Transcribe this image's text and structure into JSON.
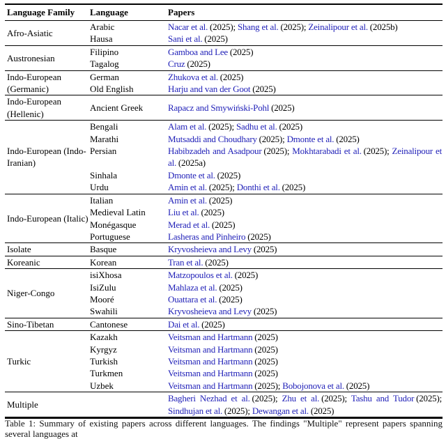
{
  "table": {
    "sep": "; ",
    "headers": {
      "family": "Language Family",
      "language": "Language",
      "papers": "Papers"
    },
    "link_color": "#2121b8",
    "groups": [
      {
        "family": "Afro-Asiatic",
        "rows": [
          {
            "language": "Arabic",
            "papers": [
              {
                "a": "Nacar et al.",
                "y": "(2025)"
              },
              {
                "a": "Shang et al.",
                "y": "(2025)"
              },
              {
                "a": "Zeinalipour et al.",
                "y": "(2025b)"
              }
            ]
          },
          {
            "language": "Hausa",
            "papers": [
              {
                "a": "Sani et al.",
                "y": "(2025)"
              }
            ]
          }
        ]
      },
      {
        "family": "Austronesian",
        "rows": [
          {
            "language": "Filipino",
            "papers": [
              {
                "a": "Gamboa and Lee",
                "y": "(2025)"
              }
            ]
          },
          {
            "language": "Tagalog",
            "papers": [
              {
                "a": "Cruz",
                "y": "(2025)"
              }
            ]
          }
        ]
      },
      {
        "family": "Indo-European (Germanic)",
        "rows": [
          {
            "language": "German",
            "papers": [
              {
                "a": "Zhukova et al.",
                "y": "(2025)"
              }
            ]
          },
          {
            "language": "Old English",
            "papers": [
              {
                "a": "Harju and van der Goot",
                "y": "(2025)"
              }
            ]
          }
        ]
      },
      {
        "family": "Indo-European (Hellenic)",
        "rows": [
          {
            "language": "Ancient Greek",
            "papers": [
              {
                "a": "Rapacz and Smywiński-Pohl",
                "y": "(2025)"
              }
            ]
          }
        ]
      },
      {
        "family": "Indo-European (Indo-Iranian)",
        "rows": [
          {
            "language": "Bengali",
            "papers": [
              {
                "a": "Alam et al.",
                "y": "(2025)"
              },
              {
                "a": "Sadhu et al.",
                "y": "(2025)"
              }
            ]
          },
          {
            "language": "Marathi",
            "papers": [
              {
                "a": "Mutsaddi and Choudhary",
                "y": "(2025)"
              },
              {
                "a": "Dmonte et al.",
                "y": "(2025)"
              }
            ]
          },
          {
            "language": "Persian",
            "papers": [
              {
                "a": "Habibzadeh and Asadpour",
                "y": "(2025)"
              },
              {
                "a": "Mokhtarabadi et al.",
                "y": "(2025)"
              },
              {
                "a": "Zeinalipour et al.",
                "y": "(2025a)"
              }
            ]
          },
          {
            "language": "Sinhala",
            "papers": [
              {
                "a": "Dmonte et al.",
                "y": "(2025)"
              }
            ]
          },
          {
            "language": "Urdu",
            "papers": [
              {
                "a": "Amin et al.",
                "y": "(2025)"
              },
              {
                "a": "Donthi et al.",
                "y": "(2025)"
              }
            ]
          }
        ]
      },
      {
        "family": "Indo-European (Italic)",
        "rows": [
          {
            "language": "Italian",
            "papers": [
              {
                "a": "Amin et al.",
                "y": "(2025)"
              }
            ]
          },
          {
            "language": "Medieval Latin",
            "papers": [
              {
                "a": "Liu et al.",
                "y": "(2025)"
              }
            ]
          },
          {
            "language": "Monégasque",
            "papers": [
              {
                "a": "Merad et al.",
                "y": "(2025)"
              }
            ]
          },
          {
            "language": "Portuguese",
            "papers": [
              {
                "a": "Lasheras and Pinheiro",
                "y": "(2025)"
              }
            ]
          }
        ]
      },
      {
        "family": "Isolate",
        "rows": [
          {
            "language": "Basque",
            "papers": [
              {
                "a": "Kryvosheieva and Levy",
                "y": "(2025)"
              }
            ]
          }
        ]
      },
      {
        "family": "Koreanic",
        "rows": [
          {
            "language": "Korean",
            "papers": [
              {
                "a": "Tran et al.",
                "y": "(2025)"
              }
            ]
          }
        ]
      },
      {
        "family": "Niger-Congo",
        "rows": [
          {
            "language": "isiXhosa",
            "papers": [
              {
                "a": "Matzopoulos et al.",
                "y": "(2025)"
              }
            ]
          },
          {
            "language": "IsiZulu",
            "papers": [
              {
                "a": "Mahlaza et al.",
                "y": "(2025)"
              }
            ]
          },
          {
            "language": "Mooré",
            "papers": [
              {
                "a": "Ouattara et al.",
                "y": "(2025)"
              }
            ]
          },
          {
            "language": "Swahili",
            "papers": [
              {
                "a": "Kryvosheieva and Levy",
                "y": "(2025)"
              }
            ]
          }
        ]
      },
      {
        "family": "Sino-Tibetan",
        "rows": [
          {
            "language": "Cantonese",
            "papers": [
              {
                "a": "Dai et al.",
                "y": "(2025)"
              }
            ]
          }
        ]
      },
      {
        "family": "Turkic",
        "rows": [
          {
            "language": "Kazakh",
            "papers": [
              {
                "a": "Veitsman and Hartmann",
                "y": "(2025)"
              }
            ]
          },
          {
            "language": "Kyrgyz",
            "papers": [
              {
                "a": "Veitsman and Hartmann",
                "y": "(2025)"
              }
            ]
          },
          {
            "language": "Turkish",
            "papers": [
              {
                "a": "Veitsman and Hartmann",
                "y": "(2025)"
              }
            ]
          },
          {
            "language": "Turkmen",
            "papers": [
              {
                "a": "Veitsman and Hartmann",
                "y": "(2025)"
              }
            ]
          },
          {
            "language": "Uzbek",
            "papers": [
              {
                "a": "Veitsman and Hartmann",
                "y": "(2025)"
              },
              {
                "a": "Bobojonova et al.",
                "y": "(2025)"
              }
            ]
          }
        ]
      },
      {
        "family": "Multiple",
        "rows": [
          {
            "language": "",
            "papers": [
              {
                "a": "Bagheri Nezhad et al.",
                "y": "(2025)"
              },
              {
                "a": "Zhu et al.",
                "y": "(2025)"
              },
              {
                "a": "Tashu and Tudor",
                "y": "(2025)"
              },
              {
                "a": "Sindhujan et al.",
                "y": "(2025)"
              },
              {
                "a": "Dewangan et al.",
                "y": "(2025)"
              }
            ]
          }
        ]
      }
    ]
  },
  "caption": "Table 1: Summary of existing papers across different languages. The findings \"Multiple\" represent papers spanning several languages at"
}
